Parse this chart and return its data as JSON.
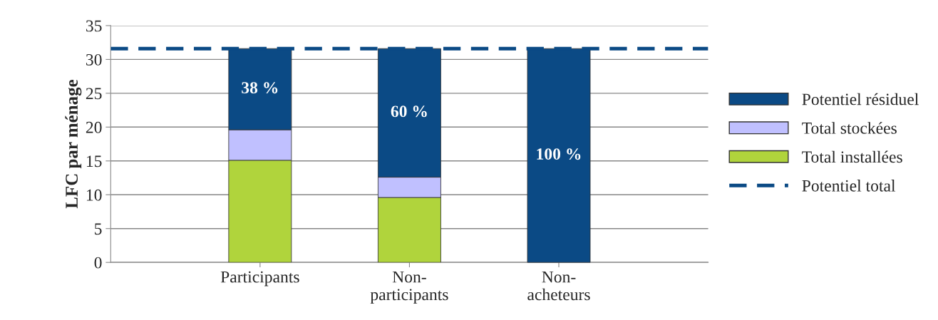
{
  "chart_data": {
    "type": "bar",
    "stacked": true,
    "ylabel": "LFC par ménage",
    "categories": [
      "Participants",
      "Non-\nparticipants",
      "Non-\nacheteurs"
    ],
    "series": [
      {
        "name": "Total installées",
        "color": "#b0d43c",
        "values": [
          15.1,
          9.6,
          0
        ]
      },
      {
        "name": "Total stockées",
        "color": "#c0c0ff",
        "values": [
          4.5,
          3.0,
          0
        ]
      },
      {
        "name": "Potentiel résiduel",
        "color": "#0b4a85",
        "values": [
          12.0,
          19.0,
          31.6
        ]
      }
    ],
    "annotations": [
      "38 %",
      "60 %",
      "100 %"
    ],
    "ref_lines": [
      {
        "axis": "y",
        "value": 31.6,
        "label": "Potentiel total",
        "color": "#0b4a85",
        "line_style": "dashed"
      }
    ],
    "ylim": [
      0,
      35
    ],
    "yticks": [
      0,
      5,
      10,
      15,
      20,
      25,
      30,
      35
    ],
    "grid": "y",
    "legend": "right"
  }
}
